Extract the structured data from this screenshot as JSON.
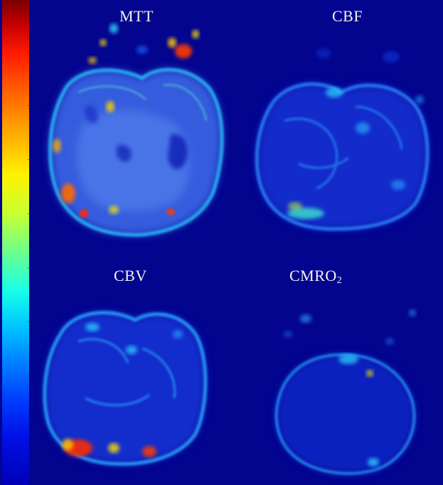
{
  "panels": {
    "mtt": {
      "label": "MTT"
    },
    "cbf": {
      "label": "CBF"
    },
    "cbv": {
      "label": "CBV"
    },
    "cmro2": {
      "label": "CMRO",
      "subscript": "2"
    }
  },
  "colormap": "jet",
  "colors": {
    "background": "#03058e"
  }
}
